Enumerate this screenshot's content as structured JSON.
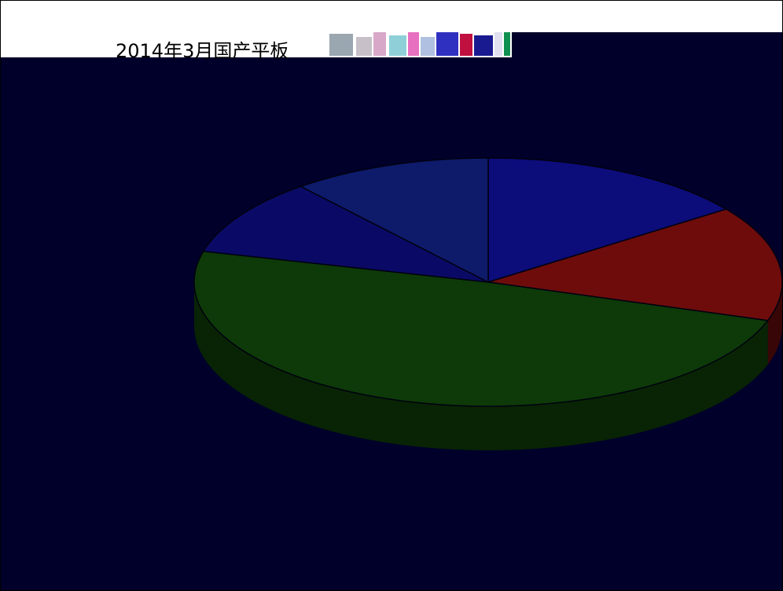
{
  "chart_data": {
    "type": "pie",
    "title": "2014年3月国产平板",
    "slices": [
      {
        "label": "",
        "value": 15,
        "color": "#0c0c7a",
        "side_color": "#060640"
      },
      {
        "label": "",
        "value": 15,
        "color": "#6e0c0c",
        "side_color": "#380606"
      },
      {
        "label": "",
        "value": 49,
        "color": "#0d3a08",
        "side_color": "#082404"
      },
      {
        "label": "",
        "value": 10,
        "color": "#0a0a66",
        "side_color": "#050538"
      },
      {
        "label": "",
        "value": 11,
        "color": "#0e1a6a",
        "side_color": "#070d38"
      }
    ],
    "legend": "none",
    "depth_3d": true
  },
  "colors": {
    "background": "#00002a",
    "title_band": "#ffffff",
    "title_text": "#000000"
  },
  "source_note": ""
}
